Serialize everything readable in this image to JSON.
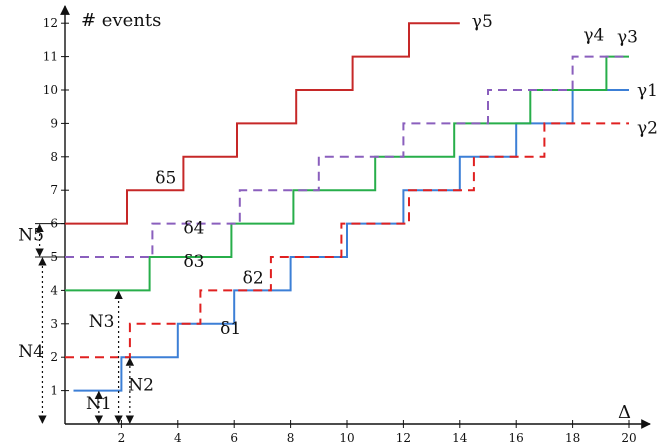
{
  "chart_data": {
    "type": "line",
    "title": "",
    "ylabel": "# events",
    "xlabel": "Δ",
    "x_ticks": [
      2,
      4,
      6,
      8,
      10,
      12,
      14,
      16,
      18,
      20
    ],
    "y_ticks": [
      1,
      2,
      3,
      4,
      5,
      6,
      7,
      8,
      9,
      10,
      11,
      12
    ],
    "xlim": [
      0,
      20.5
    ],
    "ylim": [
      0,
      12.7
    ],
    "series": [
      {
        "name": "γ1",
        "color": "#3c7fd6",
        "dash": "solid",
        "x": [
          0.3,
          2,
          4,
          6,
          8,
          10,
          12,
          14,
          16,
          18,
          20
        ],
        "y": [
          1,
          2,
          3,
          4,
          5,
          6,
          7,
          8,
          9,
          10,
          10
        ]
      },
      {
        "name": "γ2",
        "color": "#e02020",
        "dash": "dashed",
        "x": [
          0,
          2.3,
          4.8,
          7.3,
          9.8,
          12.2,
          14.5,
          17,
          20
        ],
        "y": [
          2,
          3,
          4,
          5,
          6,
          7,
          8,
          9,
          9
        ]
      },
      {
        "name": "γ3",
        "color": "#27ae4a",
        "dash": "solid",
        "x": [
          0,
          3,
          5.9,
          8.1,
          11,
          13.8,
          16.5,
          19.2,
          20
        ],
        "y": [
          4,
          5,
          6,
          7,
          8,
          9,
          10,
          11,
          11
        ]
      },
      {
        "name": "γ4",
        "color": "#8a5fbd",
        "dash": "dashed",
        "x": [
          0,
          3.1,
          6.2,
          9,
          12,
          15,
          18,
          19.8
        ],
        "y": [
          5,
          6,
          7,
          8,
          9,
          10,
          11,
          11
        ]
      },
      {
        "name": "γ5",
        "color": "#c62828",
        "dash": "solid",
        "x": [
          0,
          2.2,
          4.2,
          6.1,
          8.2,
          10.2,
          12.2,
          14
        ],
        "y": [
          6,
          7,
          8,
          9,
          10,
          11,
          12,
          12
        ]
      }
    ],
    "annotations": {
      "deltas": [
        {
          "label": "δ1",
          "x": 5.5,
          "y": 2.7
        },
        {
          "label": "δ2",
          "x": 6.3,
          "y": 4.2
        },
        {
          "label": "δ3",
          "x": 4.2,
          "y": 4.7
        },
        {
          "label": "δ4",
          "x": 4.2,
          "y": 5.7
        },
        {
          "label": "δ5",
          "x": 3.2,
          "y": 7.2
        }
      ],
      "counts": [
        {
          "label": "N1",
          "x": 1.2,
          "from": 0,
          "to": 1,
          "label_x": 1.2,
          "label_y": 0.45
        },
        {
          "label": "N2",
          "x": 2.3,
          "from": 0,
          "to": 2,
          "label_x": 2.7,
          "label_y": 1.0
        },
        {
          "label": "N3",
          "x": 1.9,
          "from": 0,
          "to": 4,
          "label_x": 1.3,
          "label_y": 2.9
        },
        {
          "label": "N4",
          "x": -0.8,
          "from": 0,
          "to": 5,
          "label_x": -1.2,
          "label_y": 2.0
        },
        {
          "label": "N5",
          "x": -0.9,
          "from": 5,
          "to": 6,
          "label_x": -1.2,
          "label_y": 5.5
        }
      ]
    }
  }
}
